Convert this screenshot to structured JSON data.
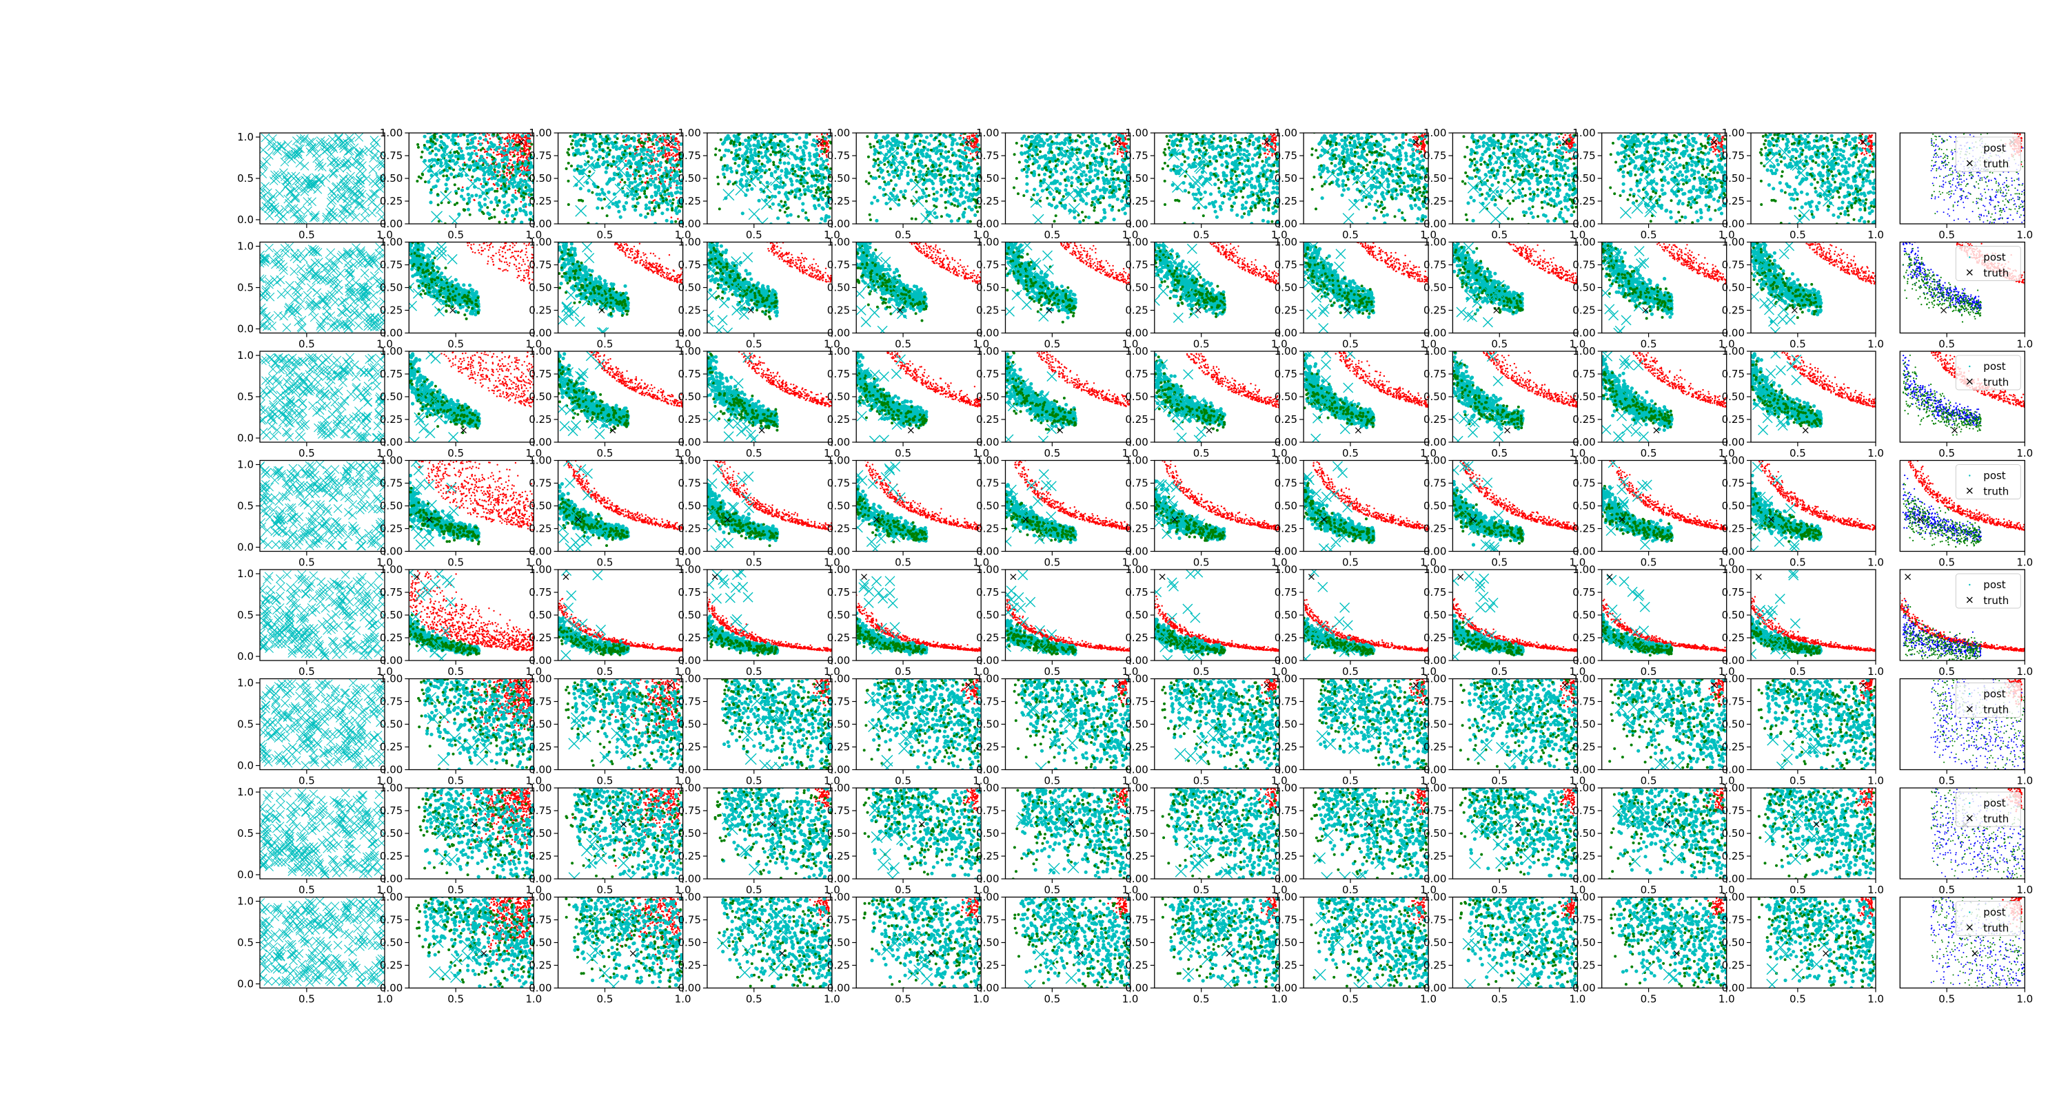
{
  "figure": {
    "rows": 8,
    "cols": 12,
    "colors": {
      "background": "#ffffff",
      "axis": "#000000",
      "cyan": "#00bfbf",
      "red": "#ff0000",
      "green": "#008000",
      "blue": "#0000ff"
    }
  },
  "chart_data": {
    "type": "scatter",
    "grid": false,
    "first_column": {
      "description_type": "scatter of cyan x markers",
      "xticks": [
        "0.5",
        "1.0"
      ],
      "yticks": [
        "0.0",
        "0.5",
        "1.0"
      ],
      "xlim": [
        0.2,
        1.0
      ],
      "ylim": [
        -0.05,
        1.05
      ]
    },
    "middle_columns": {
      "xticks": [
        "0.5",
        "1.0"
      ],
      "yticks": [
        "0.00",
        "0.25",
        "0.50",
        "0.75",
        "1.00"
      ],
      "xlim": [
        0.2,
        1.0
      ],
      "ylim": [
        0.0,
        1.0
      ]
    },
    "last_column": {
      "xticks": [
        "0.5",
        "1.0"
      ],
      "legend": {
        "entries": [
          "post",
          "truth"
        ],
        "placement": "upper-right"
      }
    },
    "rows": [
      {
        "pattern": "diffuse",
        "truth": [
          0.92,
          0.9
        ]
      },
      {
        "pattern": "band",
        "c_red": 0.55,
        "c_cyan": 0.14,
        "truth": [
          0.48,
          0.25
        ]
      },
      {
        "pattern": "band",
        "c_red": 0.4,
        "c_cyan": 0.11,
        "truth": [
          0.55,
          0.13
        ]
      },
      {
        "pattern": "band",
        "c_red": 0.25,
        "c_cyan": 0.08,
        "truth": [
          0.33,
          0.35
        ]
      },
      {
        "pattern": "band",
        "c_red": 0.12,
        "c_cyan": 0.05,
        "truth": [
          0.25,
          0.92
        ]
      },
      {
        "pattern": "diffuse",
        "truth": [
          0.92,
          0.93
        ]
      },
      {
        "pattern": "diffuse",
        "truth": [
          0.62,
          0.6
        ]
      },
      {
        "pattern": "diffuse",
        "truth": [
          0.68,
          0.38
        ]
      }
    ]
  }
}
